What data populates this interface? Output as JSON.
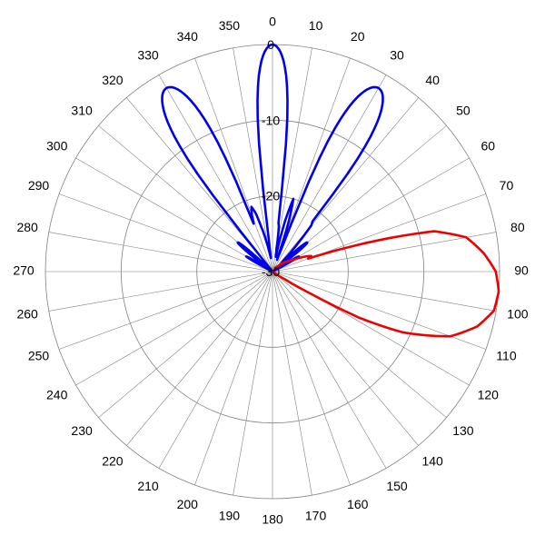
{
  "chart_data": {
    "type": "polar-line",
    "title": "",
    "angle_unit": "degrees",
    "angle_zero": "top",
    "angle_direction": "clockwise",
    "angle_ticks": [
      "0",
      "10",
      "20",
      "30",
      "40",
      "50",
      "60",
      "70",
      "80",
      "90",
      "100",
      "110",
      "120",
      "130",
      "140",
      "150",
      "160",
      "170",
      "180",
      "190",
      "200",
      "210",
      "220",
      "230",
      "240",
      "250",
      "260",
      "270",
      "280",
      "290",
      "300",
      "310",
      "320",
      "330",
      "340",
      "350"
    ],
    "radial_range": [
      -30,
      0
    ],
    "radial_ticks": [
      "0",
      "-10",
      "-20",
      "-30"
    ],
    "grid": true,
    "legend": "none",
    "series": [
      {
        "color": "#0000ee",
        "points": [
          [
            -28,
            -29
          ],
          [
            -22,
            -24
          ],
          [
            -20,
            -22
          ],
          [
            -18,
            -21
          ],
          [
            -16,
            -22
          ],
          [
            -14,
            -24
          ],
          [
            -10,
            -27
          ],
          [
            -5,
            -29
          ],
          [
            0,
            -27
          ],
          [
            3,
            -24
          ],
          [
            6,
            -23
          ],
          [
            8,
            -24
          ],
          [
            10,
            -27
          ],
          [
            12,
            -28
          ],
          [
            14,
            -23
          ],
          [
            16,
            -20
          ],
          [
            18,
            -23
          ],
          [
            20,
            -28
          ],
          [
            23,
            -29
          ],
          [
            28,
            -26
          ],
          [
            33,
            -24
          ],
          [
            35,
            -22
          ],
          [
            37,
            -21
          ],
          [
            40,
            -22
          ],
          [
            42,
            -25
          ],
          [
            45,
            -28
          ],
          [
            50,
            -29
          ],
          [
            54,
            -29
          ],
          [
            57,
            -28
          ],
          [
            60,
            -29
          ]
        ],
        "lobes": [
          {
            "center": -30,
            "peak": -2,
            "half_width": 9
          },
          {
            "center": -50,
            "peak": -24,
            "half_width": 5
          },
          {
            "center": -60,
            "peak": -26,
            "half_width": 4
          },
          {
            "center": 0,
            "peak": 0,
            "half_width": 7
          },
          {
            "center": 30,
            "peak": -2,
            "half_width": 9
          },
          {
            "center": 50,
            "peak": -24,
            "half_width": 5
          },
          {
            "center": 60,
            "peak": -26,
            "half_width": 4
          }
        ]
      },
      {
        "color": "#ee0000",
        "points": [
          [
            35,
            -29.5
          ],
          [
            45,
            -29
          ],
          [
            60,
            -27
          ],
          [
            66,
            -25
          ],
          [
            68,
            -24.5
          ],
          [
            70,
            -25
          ],
          [
            72,
            -20
          ],
          [
            76,
            -8
          ],
          [
            80,
            -4
          ],
          [
            85,
            -2
          ],
          [
            90,
            -0.5
          ],
          [
            95,
            0
          ],
          [
            100,
            -0.3
          ],
          [
            105,
            -2
          ],
          [
            110,
            -5
          ],
          [
            115,
            -11
          ],
          [
            118,
            -17
          ],
          [
            120,
            -24
          ],
          [
            122,
            -28
          ],
          [
            125,
            -29.5
          ],
          [
            130,
            -30
          ]
        ]
      }
    ]
  }
}
